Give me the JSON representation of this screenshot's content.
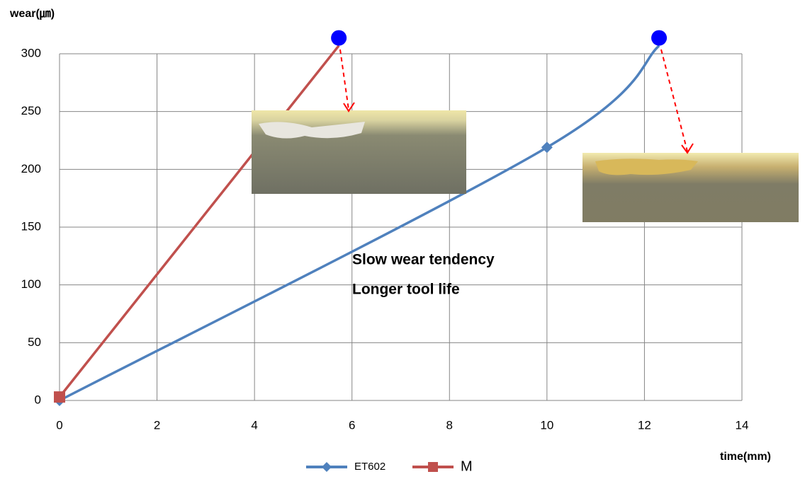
{
  "chart_data": {
    "type": "line",
    "y_label": "wear(㎛)",
    "x_label": "time(mm)",
    "series": [
      {
        "name": "ET602",
        "color": "#4f81bd",
        "marker": "diamond",
        "x": [
          0,
          10,
          12.3
        ],
        "values": [
          0,
          219,
          307
        ]
      },
      {
        "name": "M",
        "color": "#c0504d",
        "marker": "square",
        "x": [
          0,
          5.73
        ],
        "values": [
          3,
          307
        ]
      }
    ],
    "highlight_color": "#0000ff",
    "annotations": [
      "Slow wear tendency",
      "Longer tool life"
    ],
    "annotation_color": "#0000ff",
    "xlim": [
      0,
      14
    ],
    "xticks": [
      0,
      2,
      4,
      6,
      8,
      10,
      12,
      14
    ],
    "ylim": [
      0,
      300
    ],
    "yticks": [
      0,
      50,
      100,
      150,
      200,
      250,
      300
    ],
    "grid": true,
    "legend": "bottom"
  }
}
